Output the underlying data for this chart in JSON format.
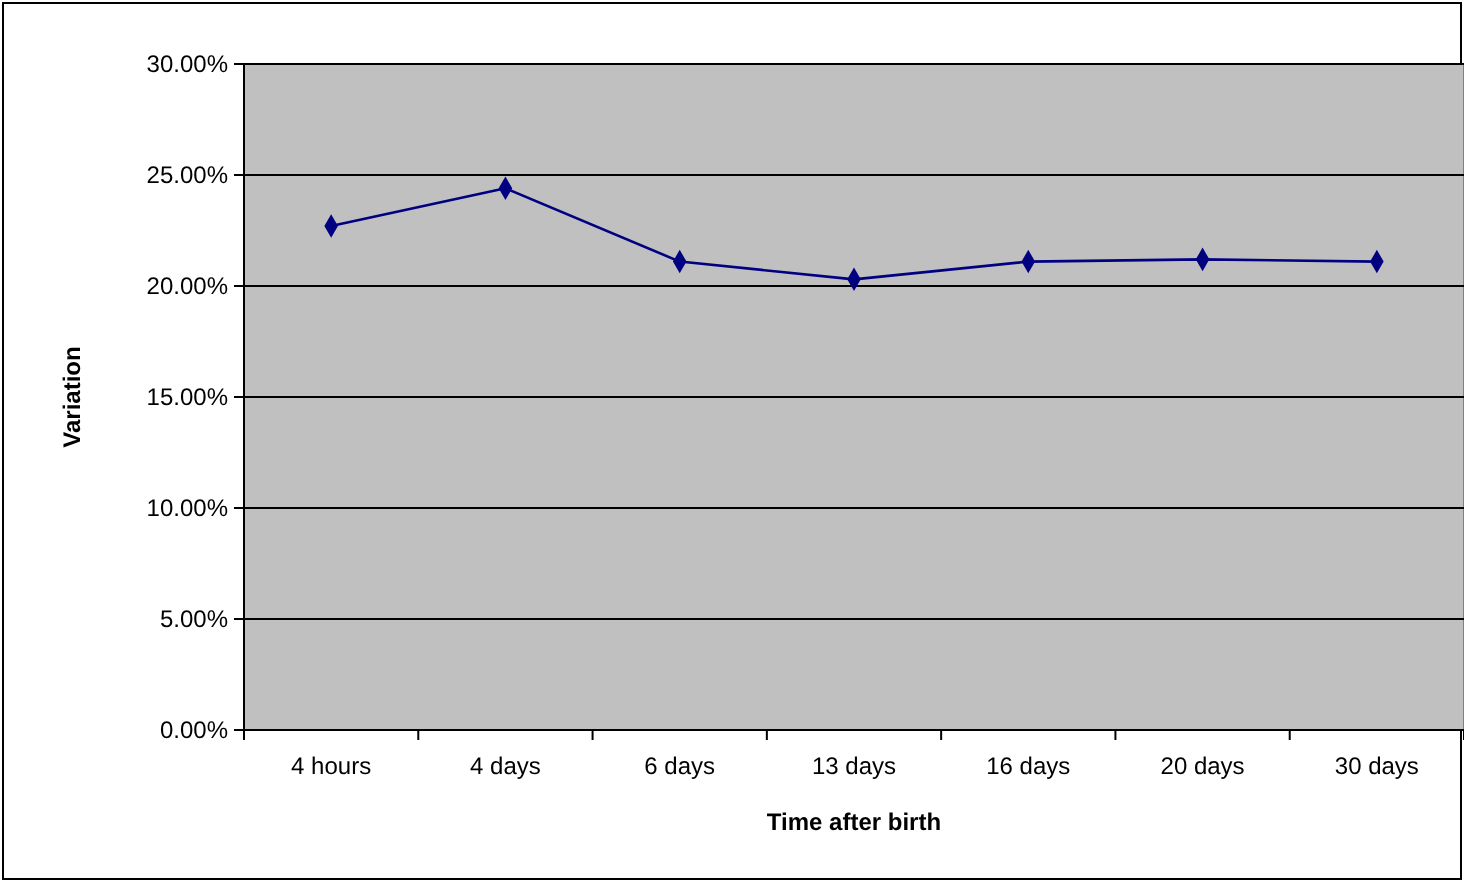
{
  "chart_data": {
    "type": "line",
    "xlabel": "Time after birth",
    "ylabel": "Variation",
    "categories": [
      "4 hours",
      "4 days",
      "6 days",
      "13 days",
      "16 days",
      "20 days",
      "30 days"
    ],
    "series": [
      {
        "color": "#000080",
        "values": [
          22.7,
          24.4,
          21.1,
          20.3,
          21.1,
          21.2,
          21.1
        ]
      }
    ],
    "ylim": [
      0,
      30
    ],
    "yticks": [
      {
        "value": 0,
        "label": "0.00%"
      },
      {
        "value": 5,
        "label": "5.00%"
      },
      {
        "value": 10,
        "label": "10.00%"
      },
      {
        "value": 15,
        "label": "15.00%"
      },
      {
        "value": 20,
        "label": "20.00%"
      },
      {
        "value": 25,
        "label": "25.00%"
      },
      {
        "value": 30,
        "label": "30.00%"
      }
    ],
    "grid": "y",
    "marker": "diamond",
    "line_style": "solid"
  }
}
